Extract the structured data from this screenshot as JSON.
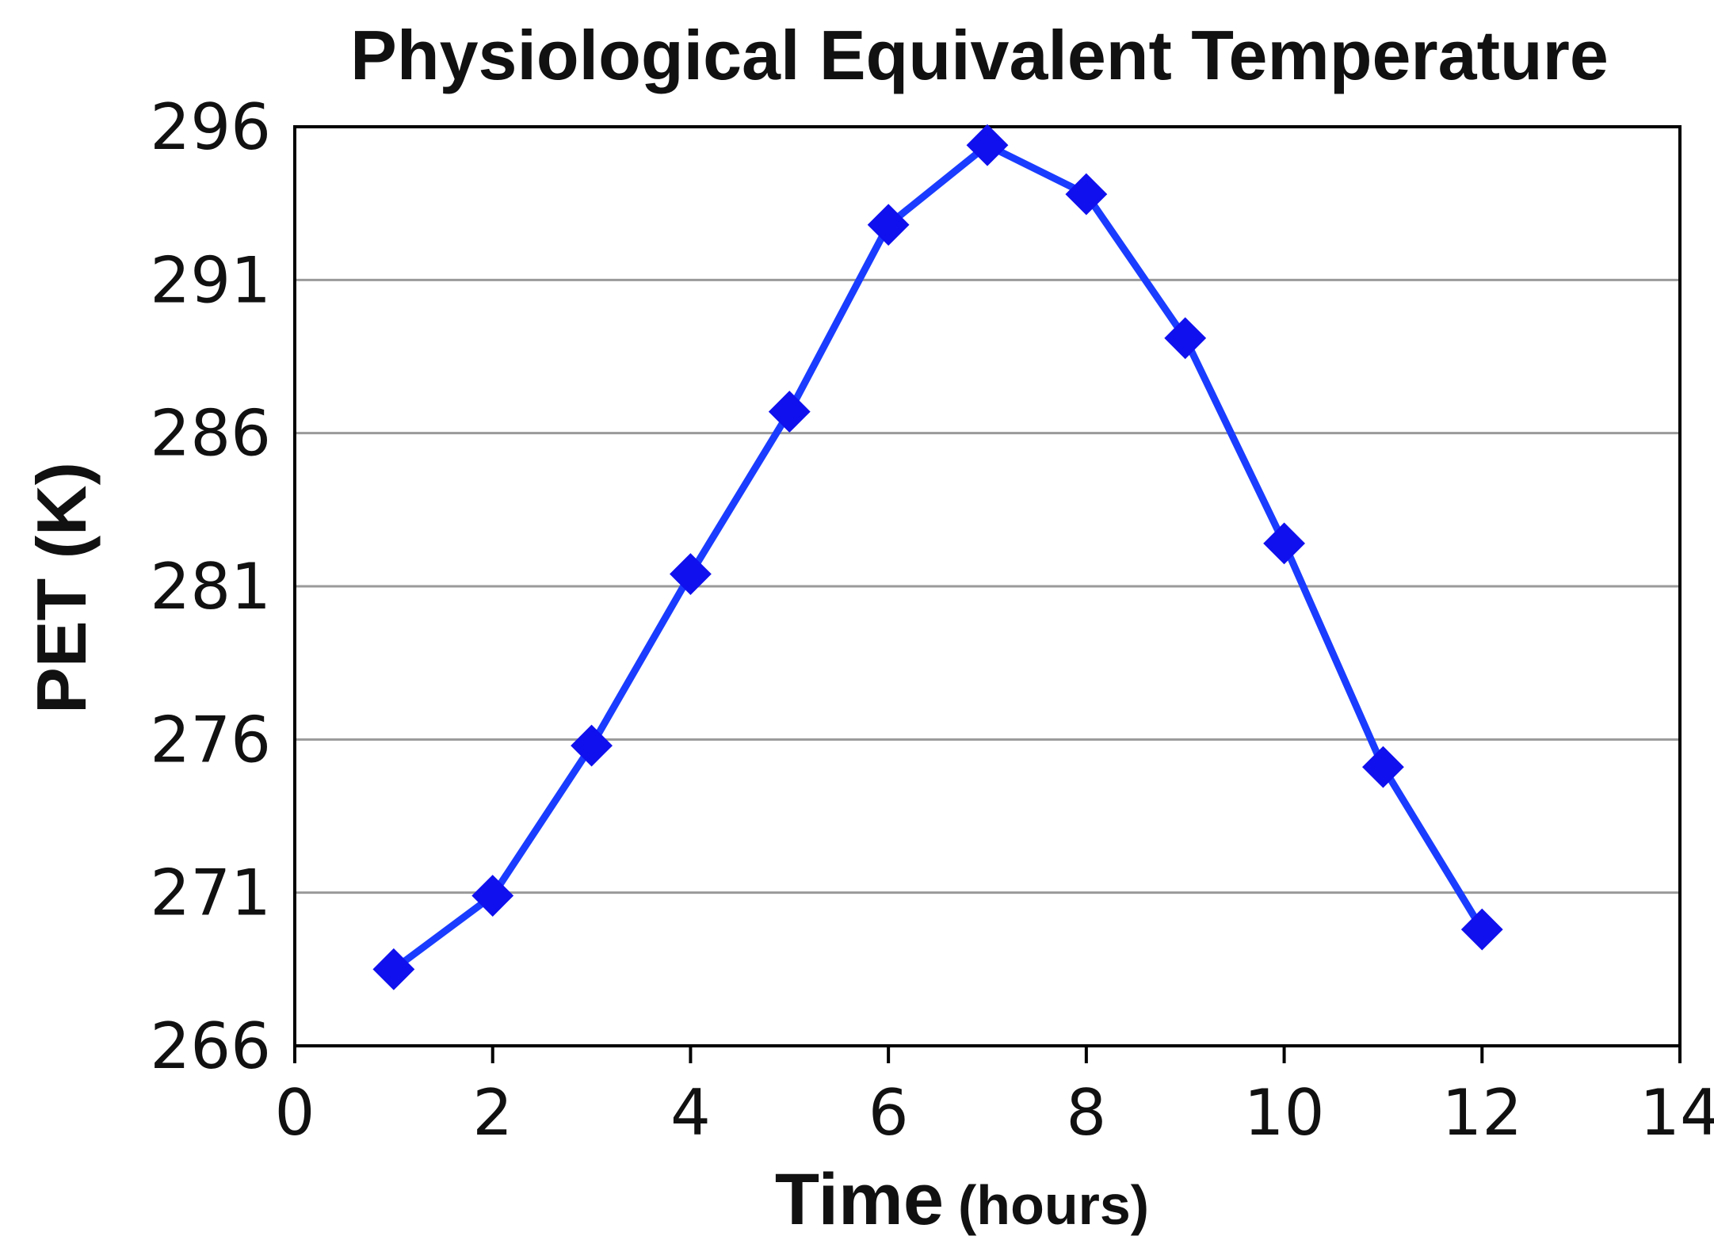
{
  "chart_data": {
    "type": "line",
    "title": "Physiological Equivalent Temperature",
    "ylabel": "PET (K)",
    "xlabel": "Time",
    "xlabel_unit": "(hours)",
    "xlim": [
      0,
      14
    ],
    "ylim": [
      266,
      296
    ],
    "xticks": [
      0,
      2,
      4,
      6,
      8,
      10,
      12,
      14
    ],
    "yticks": [
      266,
      271,
      276,
      281,
      286,
      291,
      296
    ],
    "grid": "horizontal",
    "legend": "none",
    "series": [
      {
        "color": "#1a3cff",
        "marker": "diamond",
        "marker_color": "#1010ee",
        "x": [
          1,
          2,
          3,
          4,
          5,
          6,
          7,
          8,
          9,
          10,
          11,
          12
        ],
        "y": [
          268.5,
          270.9,
          275.8,
          281.4,
          286.7,
          292.8,
          295.4,
          293.8,
          289.1,
          282.4,
          275.1,
          269.8
        ]
      }
    ]
  }
}
